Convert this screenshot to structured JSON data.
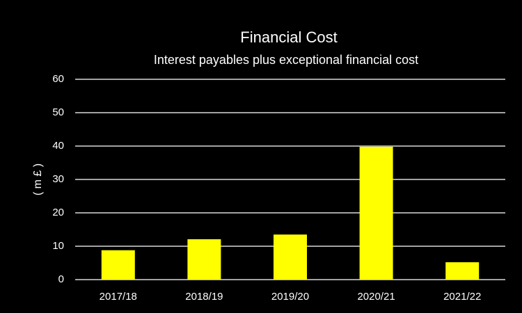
{
  "chart_data": {
    "type": "bar",
    "title": "Financial Cost",
    "subtitle": "Interest payables plus exceptional financial cost",
    "y_label": "( m £ )",
    "categories": [
      "2017/18",
      "2018/19",
      "2019/20",
      "2020/21",
      "2021/22"
    ],
    "values": [
      8.8,
      12.1,
      13.5,
      39.8,
      5.2
    ],
    "color": "#ffff00",
    "ylim": [
      0,
      60
    ],
    "yticks": [
      0,
      10,
      20,
      30,
      40,
      50,
      60
    ],
    "grid": true
  }
}
